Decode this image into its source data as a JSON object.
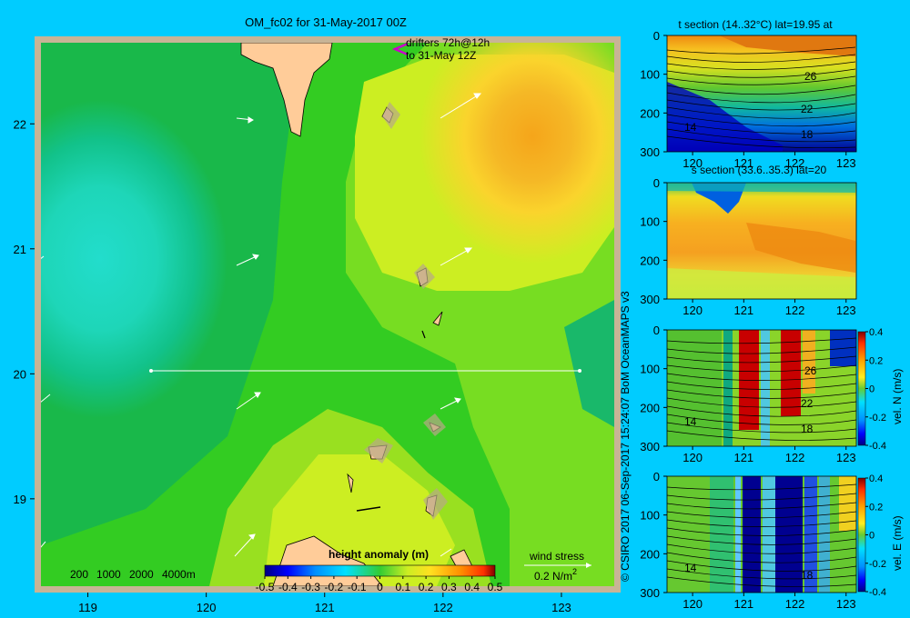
{
  "title": "OM_fc02 for 31-May-2017 00Z",
  "credit": "© CSIRO 2017   06-Sep-2017 15:24:07 BoM OceanMAPS v3",
  "map": {
    "drifters_line1": "drifters 72h@12h",
    "drifters_line2": "to 31-May 12Z",
    "depth_legend": [
      "200",
      "1000",
      "2000",
      "4000m"
    ],
    "wind_stress_label": "wind stress",
    "wind_stress_scale": "0.2 N/m",
    "wind_stress_sup": "2",
    "colorbar_title": "height anomaly (m)",
    "colorbar_ticks": [
      "-0.5",
      "-0.4",
      "-0.3",
      "-0.2",
      "-0.1",
      "0",
      "0.1",
      "0.2",
      "0.3",
      "0.4",
      "0.5"
    ],
    "x_ticks": [
      "119",
      "120",
      "121",
      "122",
      "123"
    ],
    "y_ticks": [
      "22",
      "21",
      "20",
      "19"
    ],
    "section_lat": 20,
    "section_lon_range": [
      119.5,
      123.2
    ],
    "colors": {
      "ocean_border": "#c8b496",
      "land": "#ffcc99",
      "background": "#00ccff"
    }
  },
  "chart_data": [
    {
      "type": "heatmap",
      "title": "OM_fc02 for 31-May-2017 00Z",
      "quantity": "height anomaly (m)",
      "x": [
        119,
        120,
        121,
        122,
        123
      ],
      "y": [
        19,
        20,
        21,
        22
      ],
      "xlim": [
        118.55,
        123.5
      ],
      "ylim": [
        18.25,
        22.7
      ],
      "clim": [
        -0.5,
        0.5
      ],
      "features": [
        {
          "kind": "high",
          "lon": 122.5,
          "lat": 21.95,
          "value": 0.35
        },
        {
          "kind": "low",
          "lon": 119.2,
          "lat": 20.9,
          "value": -0.05
        }
      ]
    },
    {
      "type": "heatmap",
      "title": "t section (14..32°C) lat=19.95 at",
      "xlim": [
        119.5,
        123.2
      ],
      "ylim": [
        300,
        0
      ],
      "x_ticks": [
        "120",
        "121",
        "122",
        "123"
      ],
      "y_ticks": [
        "0",
        "100",
        "200",
        "300"
      ],
      "contour_labels": [
        "26",
        "22",
        "18",
        "14"
      ]
    },
    {
      "type": "heatmap",
      "title": "s section (33.6..35.3) lat=20",
      "xlim": [
        119.5,
        123.2
      ],
      "ylim": [
        300,
        0
      ],
      "x_ticks": [
        "120",
        "121",
        "122",
        "123"
      ],
      "y_ticks": [
        "0",
        "100",
        "200",
        "300"
      ]
    },
    {
      "type": "heatmap",
      "title": "",
      "colorbar_label": "vel. N (m/s)",
      "clim": [
        -0.4,
        0.4
      ],
      "colorbar_ticks": [
        "0.4",
        "0.2",
        "0",
        "-0.2",
        "-0.4"
      ],
      "xlim": [
        119.5,
        123.2
      ],
      "ylim": [
        300,
        0
      ],
      "x_ticks": [
        "120",
        "121",
        "122",
        "123"
      ],
      "y_ticks": [
        "0",
        "100",
        "200",
        "300"
      ],
      "contour_labels": [
        "26",
        "22",
        "18",
        "14"
      ]
    },
    {
      "type": "heatmap",
      "title": "",
      "colorbar_label": "vel. E (m/s)",
      "clim": [
        -0.4,
        0.4
      ],
      "colorbar_ticks": [
        "0.4",
        "0.2",
        "0",
        "-0.2",
        "-0.4"
      ],
      "xlim": [
        119.5,
        123.2
      ],
      "ylim": [
        300,
        0
      ],
      "x_ticks": [
        "120",
        "121",
        "122",
        "123"
      ],
      "y_ticks": [
        "0",
        "100",
        "200",
        "300"
      ],
      "contour_labels": [
        "18",
        "14"
      ]
    }
  ]
}
